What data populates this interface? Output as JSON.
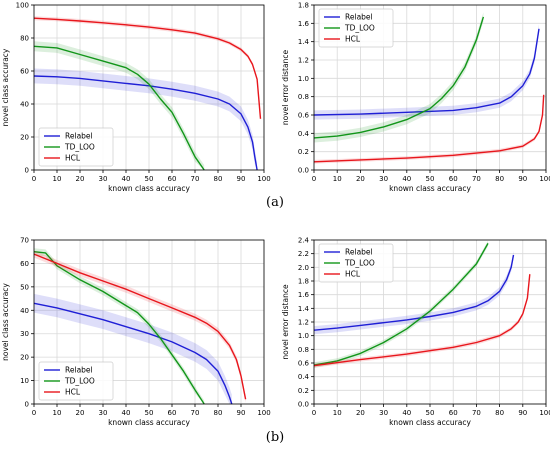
{
  "captions": [
    "(a)",
    "(b)"
  ],
  "colors": {
    "Relabel": "#1f1fd6",
    "TD_LOO": "#12961a",
    "HCL": "#e8161c"
  },
  "chart_data": [
    {
      "id": "a-left",
      "type": "line",
      "xlabel": "known class accuracy",
      "ylabel": "novel class accuracy",
      "xlim": [
        0,
        100
      ],
      "ylim": [
        0,
        100
      ],
      "xticks": [
        0,
        10,
        20,
        30,
        40,
        50,
        60,
        70,
        80,
        90,
        100
      ],
      "yticks": [
        0,
        20,
        40,
        60,
        80,
        100
      ],
      "grid": true,
      "legend": "lower-left",
      "series": [
        {
          "name": "Relabel",
          "x": [
            0,
            10,
            20,
            30,
            40,
            50,
            60,
            70,
            80,
            85,
            90,
            93,
            95,
            96,
            97
          ],
          "y": [
            57,
            56.5,
            55.5,
            54,
            52.5,
            51,
            49,
            46.5,
            43,
            40,
            34,
            26,
            17,
            8,
            0
          ],
          "band": 4.5
        },
        {
          "name": "TD_LOO",
          "x": [
            0,
            10,
            20,
            30,
            40,
            45,
            50,
            55,
            60,
            65,
            70,
            74
          ],
          "y": [
            75,
            74,
            70,
            66,
            62,
            58,
            52,
            43,
            35,
            22,
            8,
            0
          ],
          "band": 3
        },
        {
          "name": "HCL",
          "x": [
            0,
            10,
            20,
            30,
            40,
            50,
            60,
            70,
            80,
            85,
            90,
            93,
            95,
            97,
            98.5
          ],
          "y": [
            92,
            91.3,
            90.3,
            89.2,
            88,
            86.6,
            85,
            83,
            79.5,
            77,
            73,
            69,
            64,
            55,
            31
          ],
          "band": 1.2
        }
      ]
    },
    {
      "id": "a-right",
      "type": "line",
      "xlabel": "known class accuracy",
      "ylabel": "novel error distance",
      "xlim": [
        0,
        100
      ],
      "ylim": [
        0,
        1.8
      ],
      "xticks": [
        0,
        10,
        20,
        30,
        40,
        50,
        60,
        70,
        80,
        90,
        100
      ],
      "yticks": [
        0.0,
        0.2,
        0.4,
        0.6,
        0.8,
        1.0,
        1.2,
        1.4,
        1.6,
        1.8
      ],
      "grid": true,
      "legend": "upper-left",
      "series": [
        {
          "name": "Relabel",
          "x": [
            0,
            20,
            40,
            60,
            70,
            80,
            85,
            90,
            93,
            95,
            97
          ],
          "y": [
            0.6,
            0.61,
            0.63,
            0.65,
            0.68,
            0.73,
            0.8,
            0.92,
            1.05,
            1.22,
            1.54
          ],
          "band": 0.05
        },
        {
          "name": "TD_LOO",
          "x": [
            0,
            10,
            20,
            30,
            40,
            50,
            55,
            60,
            65,
            70,
            73
          ],
          "y": [
            0.35,
            0.37,
            0.41,
            0.47,
            0.55,
            0.67,
            0.78,
            0.92,
            1.12,
            1.42,
            1.67
          ],
          "band": 0.05
        },
        {
          "name": "HCL",
          "x": [
            0,
            20,
            40,
            60,
            80,
            90,
            95,
            97,
            98.5,
            99
          ],
          "y": [
            0.09,
            0.11,
            0.13,
            0.16,
            0.21,
            0.26,
            0.34,
            0.42,
            0.6,
            0.82
          ],
          "band": 0.02
        }
      ]
    },
    {
      "id": "b-left",
      "type": "line",
      "xlabel": "known class accuracy",
      "ylabel": "novel class accuracy",
      "xlim": [
        0,
        100
      ],
      "ylim": [
        0,
        70
      ],
      "xticks": [
        0,
        10,
        20,
        30,
        40,
        50,
        60,
        70,
        80,
        90,
        100
      ],
      "yticks": [
        0,
        10,
        20,
        30,
        40,
        50,
        60,
        70
      ],
      "grid": true,
      "legend": "lower-left",
      "series": [
        {
          "name": "Relabel",
          "x": [
            0,
            10,
            20,
            30,
            40,
            50,
            60,
            70,
            75,
            80,
            83,
            85,
            86
          ],
          "y": [
            43,
            41,
            38.5,
            36,
            33,
            30,
            26.5,
            22,
            19,
            14,
            8,
            3,
            0
          ],
          "band": 4
        },
        {
          "name": "TD_LOO",
          "x": [
            0,
            5,
            10,
            20,
            30,
            40,
            45,
            50,
            55,
            60,
            65,
            70,
            74
          ],
          "y": [
            65,
            64.5,
            59,
            53,
            48,
            42,
            39,
            34,
            28,
            21,
            14,
            6,
            0
          ],
          "band": 1.5
        },
        {
          "name": "HCL",
          "x": [
            0,
            10,
            20,
            30,
            40,
            50,
            60,
            70,
            75,
            80,
            85,
            88,
            90,
            92
          ],
          "y": [
            64,
            60,
            56,
            52.5,
            49,
            45,
            41,
            37,
            34.5,
            31,
            25,
            19,
            12,
            2
          ],
          "band": 1.5
        }
      ]
    },
    {
      "id": "b-right",
      "type": "line",
      "xlabel": "known class accuracy",
      "ylabel": "novel error distance",
      "xlim": [
        0,
        100
      ],
      "ylim": [
        0,
        2.4
      ],
      "xticks": [
        0,
        10,
        20,
        30,
        40,
        50,
        60,
        70,
        80,
        90,
        100
      ],
      "yticks": [
        0.0,
        0.2,
        0.4,
        0.6,
        0.8,
        1.0,
        1.2,
        1.4,
        1.6,
        1.8,
        2.0,
        2.2,
        2.4
      ],
      "grid": true,
      "legend": "upper-left",
      "series": [
        {
          "name": "Relabel",
          "x": [
            0,
            10,
            20,
            30,
            40,
            50,
            60,
            70,
            75,
            80,
            83,
            85,
            86
          ],
          "y": [
            1.08,
            1.11,
            1.15,
            1.19,
            1.23,
            1.28,
            1.34,
            1.43,
            1.51,
            1.65,
            1.82,
            2.0,
            2.18
          ],
          "band": 0.06
        },
        {
          "name": "TD_LOO",
          "x": [
            0,
            10,
            20,
            30,
            40,
            50,
            60,
            70,
            75
          ],
          "y": [
            0.57,
            0.63,
            0.74,
            0.9,
            1.1,
            1.36,
            1.68,
            2.05,
            2.35
          ],
          "band": 0.04
        },
        {
          "name": "HCL",
          "x": [
            0,
            20,
            40,
            60,
            70,
            80,
            85,
            88,
            90,
            92,
            93
          ],
          "y": [
            0.56,
            0.65,
            0.73,
            0.83,
            0.9,
            1.0,
            1.1,
            1.2,
            1.32,
            1.55,
            1.9
          ],
          "band": 0.03
        }
      ]
    }
  ]
}
